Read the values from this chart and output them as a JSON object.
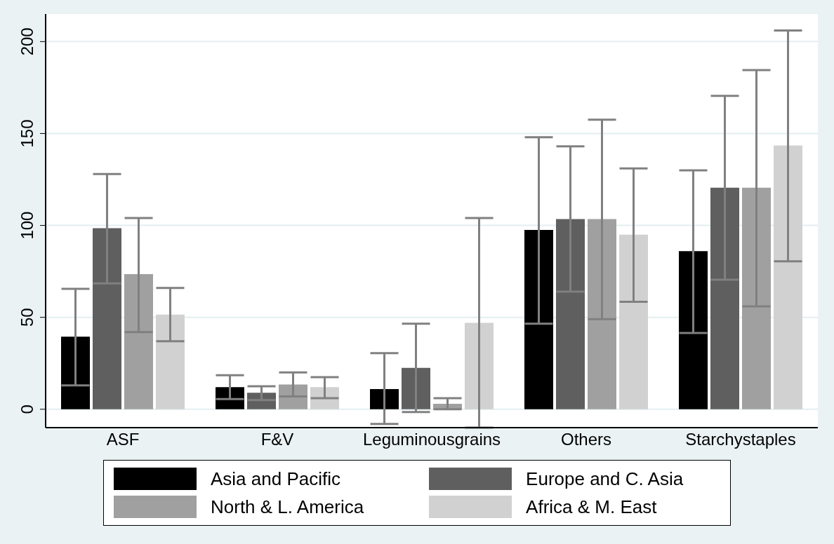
{
  "chart_data": {
    "type": "bar",
    "categories": [
      "ASF",
      "F&V",
      "Leguminousgrains",
      "Others",
      "Starchystaples"
    ],
    "series": [
      {
        "name": "Asia and Pacific",
        "color": "#000000",
        "values": [
          39.5,
          12,
          11,
          97.5,
          86
        ],
        "errors": [
          [
            13,
            65.5
          ],
          [
            5.5,
            18.5
          ],
          [
            -8,
            30.5
          ],
          [
            46.5,
            148
          ],
          [
            41.5,
            130
          ]
        ]
      },
      {
        "name": "Europe and C. Asia",
        "color": "#5f5f5f",
        "values": [
          98.5,
          9,
          22.5,
          103.5,
          120.5
        ],
        "errors": [
          [
            68.5,
            128
          ],
          [
            5,
            12.5
          ],
          [
            -1.5,
            46.5
          ],
          [
            64,
            143
          ],
          [
            70.5,
            170.5
          ]
        ]
      },
      {
        "name": "North & L. America",
        "color": "#a0a0a0",
        "values": [
          73.5,
          13.5,
          3,
          103.5,
          120.5
        ],
        "errors": [
          [
            42,
            104
          ],
          [
            7,
            20
          ],
          [
            0,
            6
          ],
          [
            49,
            157.5
          ],
          [
            56,
            184.5
          ]
        ]
      },
      {
        "name": "Africa & M. East",
        "color": "#d1d1d1",
        "values": [
          51.5,
          12,
          47,
          95,
          143.5
        ],
        "errors": [
          [
            37,
            66
          ],
          [
            6,
            17.5
          ],
          [
            -10,
            104
          ],
          [
            58.5,
            131
          ],
          [
            80.5,
            206
          ]
        ]
      }
    ],
    "ylim": [
      -10,
      215
    ],
    "yticks": [
      0,
      50,
      100,
      150,
      200
    ],
    "grid": "y",
    "legend": "bottom"
  }
}
